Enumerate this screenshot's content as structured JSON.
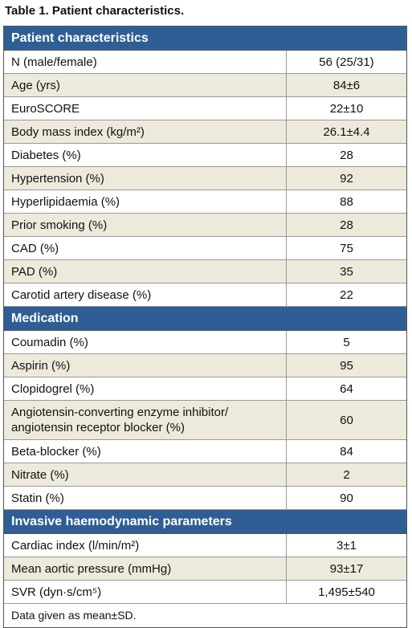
{
  "title": "Table 1. Patient characteristics.",
  "table": {
    "sections": [
      {
        "heading": "Patient characteristics",
        "rows": [
          [
            "N (male/female)",
            "56 (25/31)"
          ],
          [
            "Age (yrs)",
            "84±6"
          ],
          [
            "EuroSCORE",
            "22±10"
          ],
          [
            "Body mass index (kg/m²)",
            "26.1±4.4"
          ],
          [
            "Diabetes (%)",
            "28"
          ],
          [
            "Hypertension (%)",
            "92"
          ],
          [
            "Hyperlipidaemia (%)",
            "88"
          ],
          [
            "Prior smoking (%)",
            "28"
          ],
          [
            "CAD (%)",
            "75"
          ],
          [
            "PAD (%)",
            "35"
          ],
          [
            "Carotid artery disease (%)",
            "22"
          ]
        ]
      },
      {
        "heading": "Medication",
        "rows": [
          [
            "Coumadin (%)",
            "5"
          ],
          [
            "Aspirin (%)",
            "95"
          ],
          [
            "Clopidogrel (%)",
            "64"
          ],
          [
            "Angiotensin-converting enzyme inhibitor/ angiotensin receptor blocker (%)",
            "60"
          ],
          [
            "Beta-blocker (%)",
            "84"
          ],
          [
            "Nitrate (%)",
            "2"
          ],
          [
            "Statin (%)",
            "90"
          ]
        ]
      },
      {
        "heading": "Invasive haemodynamic parameters",
        "rows": [
          [
            "Cardiac index (l/min/m²)",
            "3±1"
          ],
          [
            "Mean aortic pressure (mmHg)",
            "93±17"
          ],
          [
            "SVR (dyn·s/cm⁵)",
            "1,495±540"
          ]
        ]
      }
    ]
  },
  "footnote": "Data given as mean±SD."
}
